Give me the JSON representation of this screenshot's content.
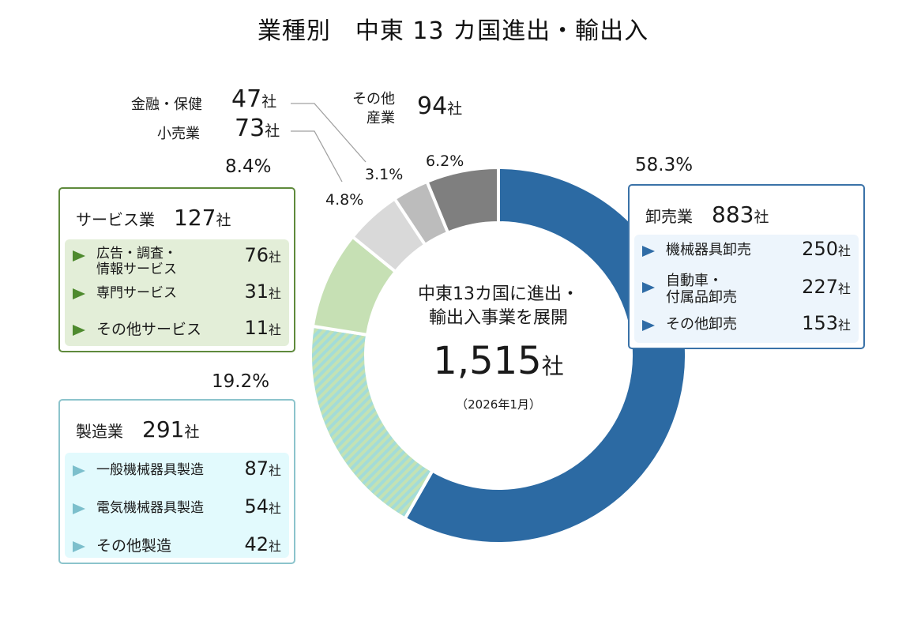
{
  "title": "業種別　中東 13 カ国進出・輸出入",
  "unit": "社",
  "center": {
    "line1": "中東13カ国に進出・",
    "line2": "輸出入事業を展開",
    "total": "1,515",
    "date": "（2026年1月）"
  },
  "categories": {
    "wholesale": {
      "name": "卸売業",
      "count": "883",
      "pct": "58.3%",
      "items": [
        {
          "label": "機械器具卸売",
          "value": "250"
        },
        {
          "label": "自動車・",
          "label2": "付属品卸売",
          "value": "227"
        },
        {
          "label": "その他卸売",
          "value": "153"
        }
      ]
    },
    "manufacturing": {
      "name": "製造業",
      "count": "291",
      "pct": "19.2%",
      "items": [
        {
          "label": "一般機械器具製造",
          "value": "87"
        },
        {
          "label": "電気機械器具製造",
          "value": "54"
        },
        {
          "label": "その他製造",
          "value": "42"
        }
      ]
    },
    "service": {
      "name": "サービス業",
      "count": "127",
      "pct": "8.4%",
      "items": [
        {
          "label": "広告・調査・",
          "label2": "情報サービス",
          "value": "76"
        },
        {
          "label": "専門サービス",
          "value": "31"
        },
        {
          "label": "その他サービス",
          "value": "11"
        }
      ]
    },
    "retail": {
      "name": "小売業",
      "count": "73",
      "pct": "4.8%"
    },
    "finance": {
      "name": "金融・保健",
      "count": "47",
      "pct": "3.1%"
    },
    "other": {
      "name1": "その他",
      "name2": "産業",
      "count": "94",
      "pct": "6.2%"
    }
  },
  "chart_data": {
    "type": "pie",
    "subtype": "donut",
    "title": "業種別　中東 13 カ国進出・輸出入",
    "total": 1515,
    "start": "12 o'clock, clockwise",
    "slices": [
      {
        "key": "wholesale",
        "label": "卸売業",
        "value": 883,
        "percent": 58.3,
        "color": "#2c6aa3"
      },
      {
        "key": "manufacturing",
        "label": "製造業",
        "value": 291,
        "percent": 19.2,
        "color": "#a3dcd8",
        "pattern": "stripes",
        "color2": "#c3e2b4"
      },
      {
        "key": "service",
        "label": "サービス業",
        "value": 127,
        "percent": 8.4,
        "color": "#c6e0b4"
      },
      {
        "key": "retail",
        "label": "小売業",
        "value": 73,
        "percent": 4.8,
        "color": "#d9d9d9"
      },
      {
        "key": "finance",
        "label": "金融・保健",
        "value": 47,
        "percent": 3.1,
        "color": "#bcbcbc"
      },
      {
        "key": "other",
        "label": "その他産業",
        "value": 94,
        "percent": 6.2,
        "color": "#7f7f7f"
      }
    ]
  }
}
